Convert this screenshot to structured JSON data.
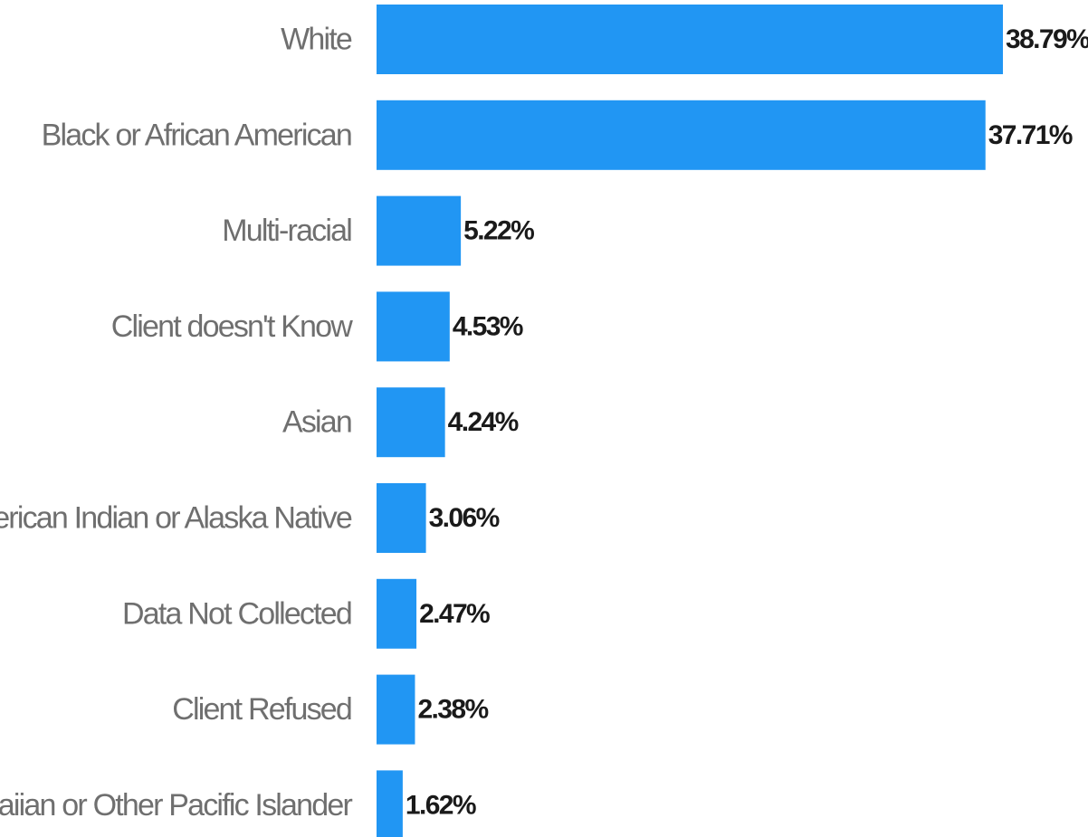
{
  "chart_data": {
    "type": "bar",
    "orientation": "horizontal",
    "categories": [
      "White",
      "Black or African American",
      "Multi-racial",
      "Client doesn't Know",
      "Asian",
      "American Indian or Alaska Native",
      "Data Not Collected",
      "Client Refused",
      "Hawaiian or Other Pacific Islander"
    ],
    "values": [
      38.79,
      37.71,
      5.22,
      4.53,
      4.24,
      3.06,
      2.47,
      2.38,
      1.62
    ],
    "value_labels": [
      "38.79%",
      "37.71%",
      "5.22%",
      "4.53%",
      "4.24%",
      "3.06%",
      "2.47%",
      "2.38%",
      "1.62%"
    ],
    "xlim": [
      0,
      38.79
    ],
    "grid": false,
    "legend": "none",
    "bar_color": "#2196f3"
  }
}
